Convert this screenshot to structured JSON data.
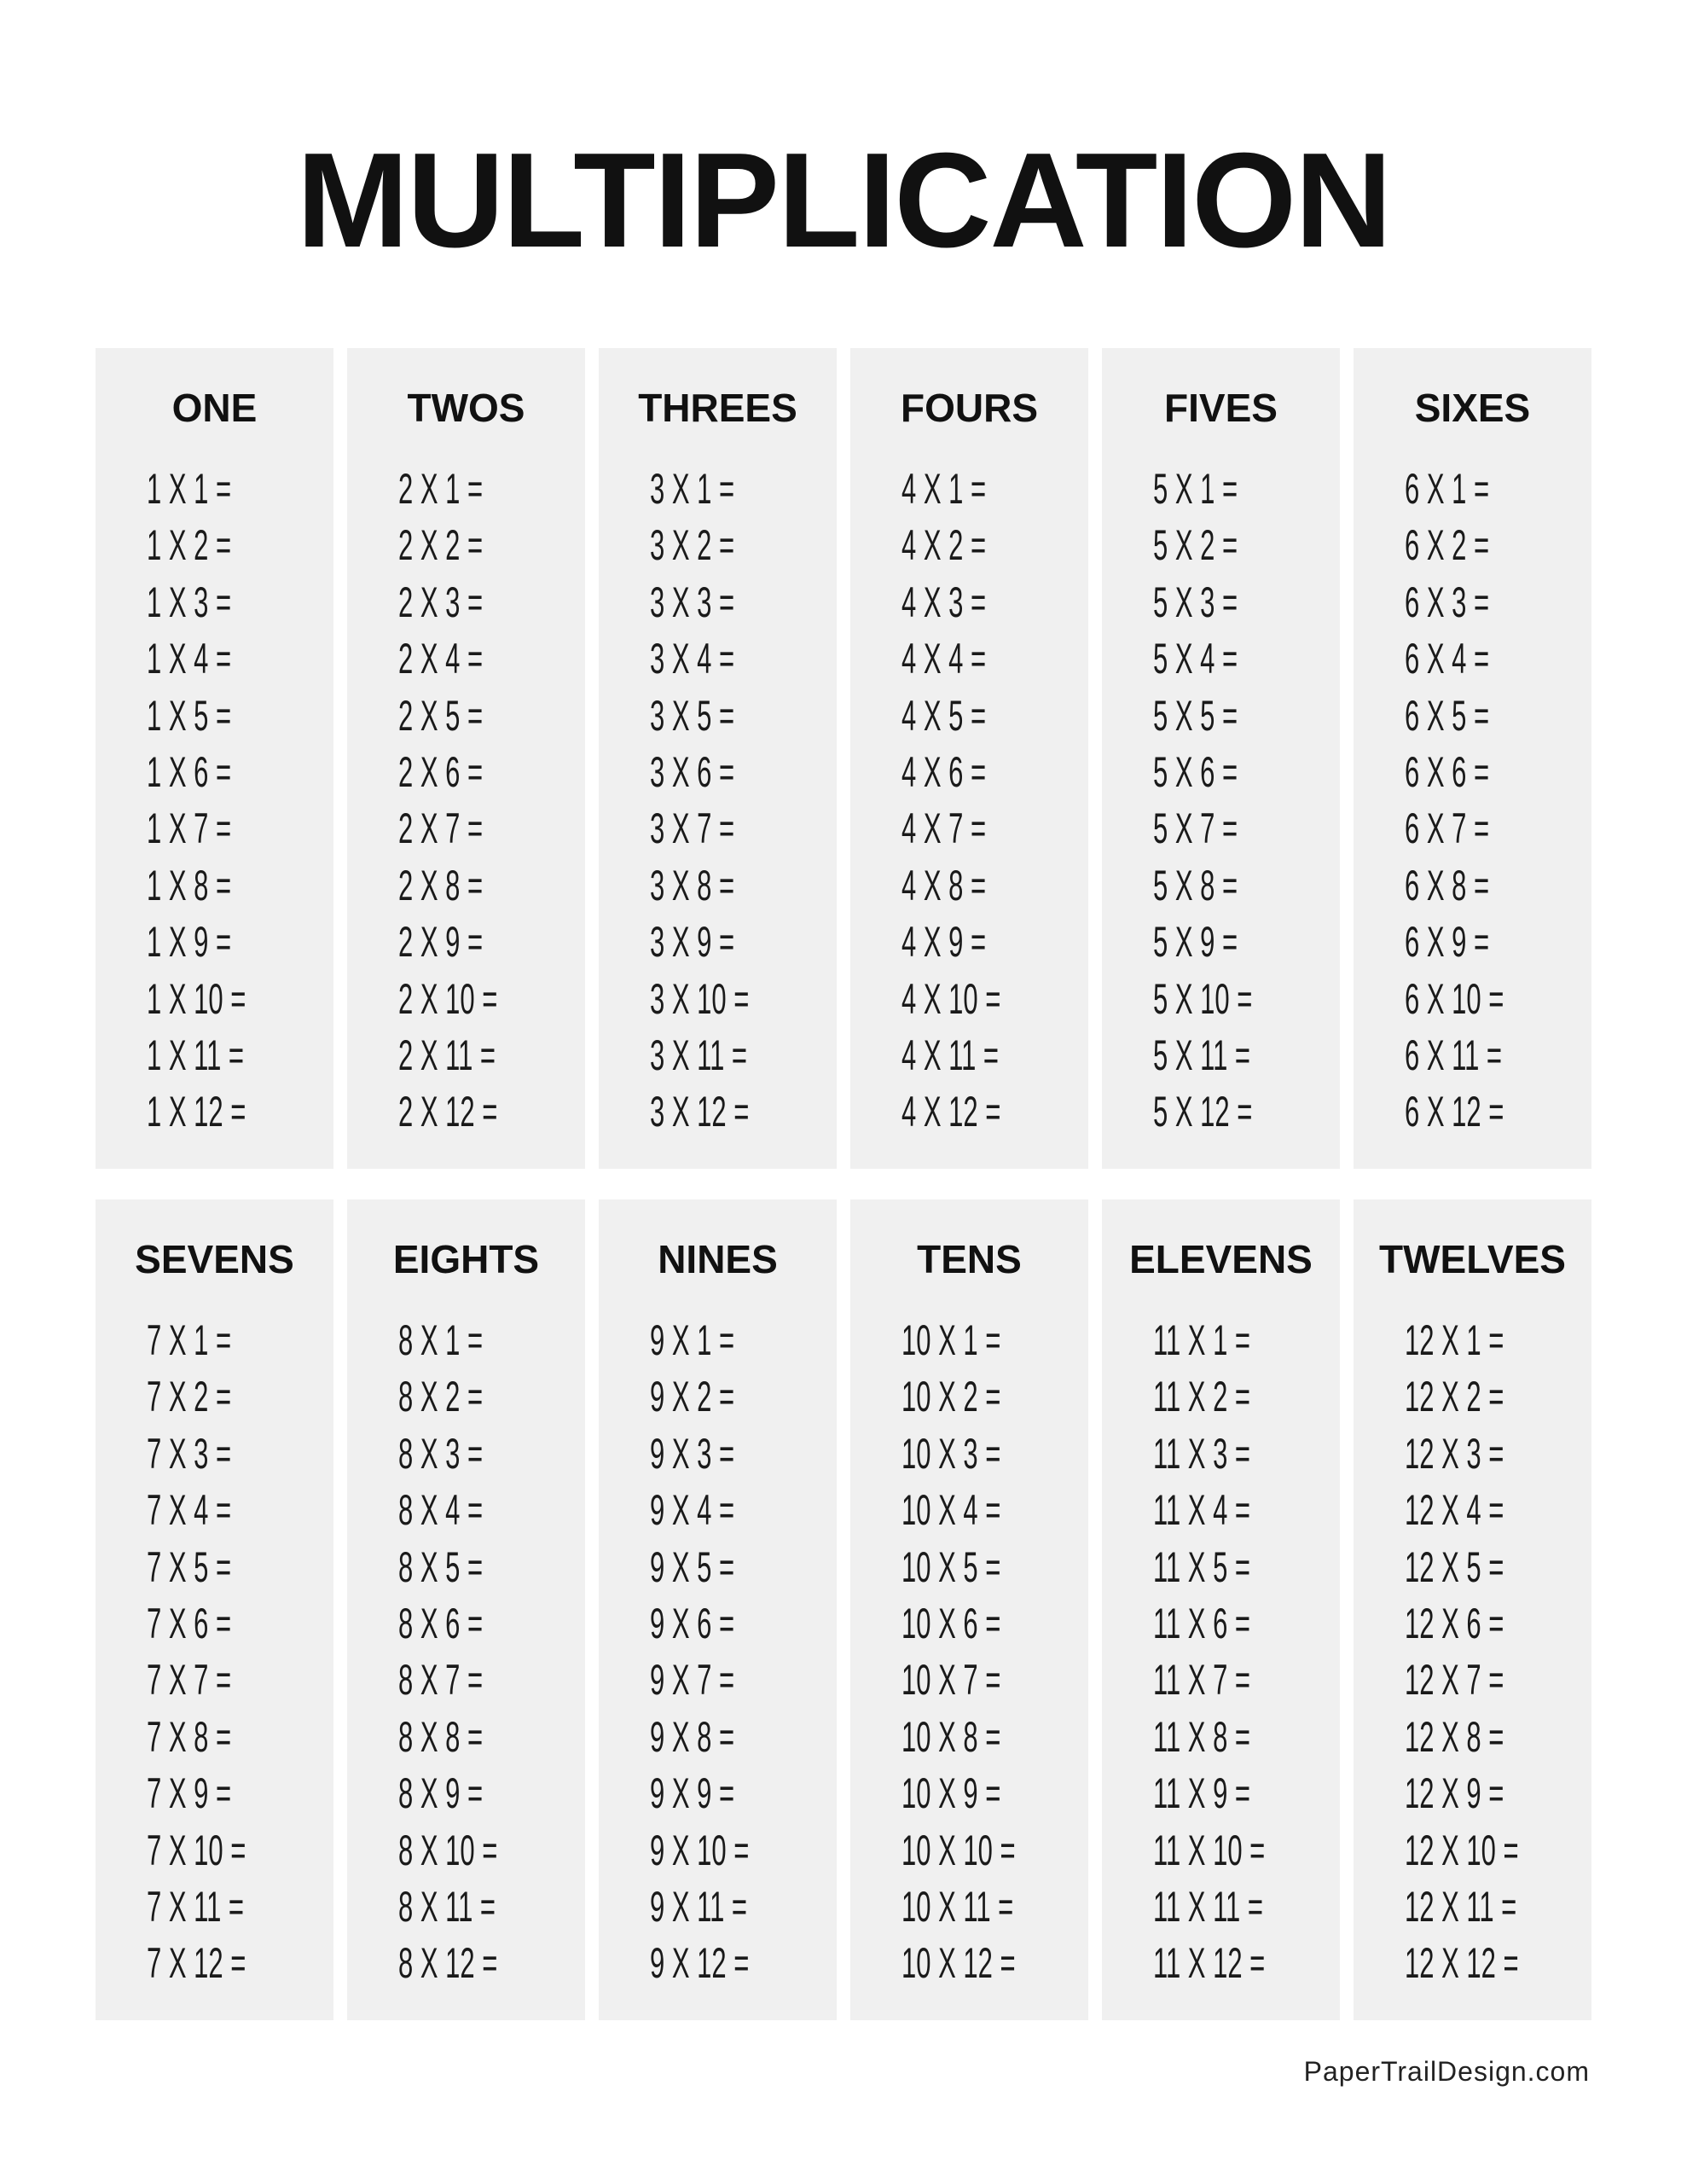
{
  "title": "MULTIPLICATION",
  "footer": "PaperTrailDesign.com",
  "colors": {
    "panel_background": "#f0f0f0",
    "text": "#111111"
  },
  "tables": [
    {
      "heading": "ONE",
      "rows": [
        "1 X 1 =",
        "1 X 2 =",
        "1 X 3 =",
        "1 X 4 =",
        "1 X 5 =",
        "1 X 6 =",
        "1 X 7 =",
        "1 X 8 =",
        "1 X 9 =",
        "1 X 10 =",
        "1 X 11 =",
        "1 X 12 ="
      ]
    },
    {
      "heading": "TWOS",
      "rows": [
        "2 X 1 =",
        "2 X 2 =",
        "2 X 3 =",
        "2 X 4 =",
        "2 X 5 =",
        "2 X 6 =",
        "2 X 7 =",
        "2 X 8 =",
        "2 X 9 =",
        "2 X 10 =",
        "2 X 11 =",
        "2 X 12 ="
      ]
    },
    {
      "heading": "THREES",
      "rows": [
        "3 X 1 =",
        "3 X 2 =",
        "3 X 3 =",
        "3 X 4 =",
        "3 X 5 =",
        "3 X 6 =",
        "3 X 7 =",
        "3 X 8 =",
        "3 X 9 =",
        "3 X 10 =",
        "3 X 11 =",
        "3 X 12 ="
      ]
    },
    {
      "heading": "FOURS",
      "rows": [
        "4 X 1 =",
        "4 X 2 =",
        "4 X 3 =",
        "4 X 4 =",
        "4 X 5 =",
        "4 X 6 =",
        "4 X 7 =",
        "4 X 8 =",
        "4 X 9 =",
        "4 X 10 =",
        "4 X 11 =",
        "4 X 12 ="
      ]
    },
    {
      "heading": "FIVES",
      "rows": [
        "5 X 1 =",
        "5 X 2 =",
        "5 X 3 =",
        "5 X 4 =",
        "5 X 5 =",
        "5 X 6 =",
        "5 X 7 =",
        "5 X 8 =",
        "5 X 9 =",
        "5 X 10 =",
        "5 X 11 =",
        "5 X 12 ="
      ]
    },
    {
      "heading": "SIXES",
      "rows": [
        "6 X 1 =",
        "6 X 2 =",
        "6 X 3 =",
        "6 X 4 =",
        "6 X 5 =",
        "6 X 6 =",
        "6 X 7 =",
        "6 X 8 =",
        "6 X 9 =",
        "6 X 10 =",
        "6 X 11 =",
        "6 X 12 ="
      ]
    },
    {
      "heading": "SEVENS",
      "rows": [
        "7 X 1 =",
        "7 X 2 =",
        "7 X 3 =",
        "7 X 4 =",
        "7 X 5 =",
        "7 X 6 =",
        "7 X 7 =",
        "7 X 8 =",
        "7 X 9 =",
        "7 X 10 =",
        "7 X 11 =",
        "7 X 12 ="
      ]
    },
    {
      "heading": "EIGHTS",
      "rows": [
        "8 X 1 =",
        "8 X 2 =",
        "8 X 3 =",
        "8 X 4 =",
        "8 X 5 =",
        "8 X 6 =",
        "8 X 7 =",
        "8 X 8 =",
        "8 X 9 =",
        "8 X 10 =",
        "8 X 11 =",
        "8 X 12 ="
      ]
    },
    {
      "heading": "NINES",
      "rows": [
        "9 X 1 =",
        "9 X 2 =",
        "9 X 3 =",
        "9 X 4 =",
        "9 X 5 =",
        "9 X 6 =",
        "9 X 7 =",
        "9 X 8 =",
        "9 X 9 =",
        "9 X 10 =",
        "9 X 11 =",
        "9 X 12 ="
      ]
    },
    {
      "heading": "TENS",
      "rows": [
        "10 X 1 =",
        "10 X 2 =",
        "10 X 3 =",
        "10 X 4 =",
        "10 X 5 =",
        "10 X 6 =",
        "10 X 7 =",
        "10 X 8 =",
        "10 X 9 =",
        "10 X 10 =",
        "10 X 11 =",
        "10 X 12 ="
      ]
    },
    {
      "heading": "ELEVENS",
      "rows": [
        "11 X 1 =",
        "11 X 2 =",
        "11 X 3 =",
        "11 X 4 =",
        "11 X 5 =",
        "11 X 6 =",
        "11 X 7 =",
        "11 X 8 =",
        "11 X 9 =",
        "11 X 10 =",
        "11 X 11 =",
        "11 X 12 ="
      ]
    },
    {
      "heading": "TWELVES",
      "rows": [
        "12 X 1 =",
        "12 X 2 =",
        "12 X 3 =",
        "12 X 4 =",
        "12 X 5 =",
        "12 X 6 =",
        "12 X 7 =",
        "12 X 8 =",
        "12 X 9 =",
        "12 X 10 =",
        "12 X 11 =",
        "12 X 12 ="
      ]
    }
  ]
}
